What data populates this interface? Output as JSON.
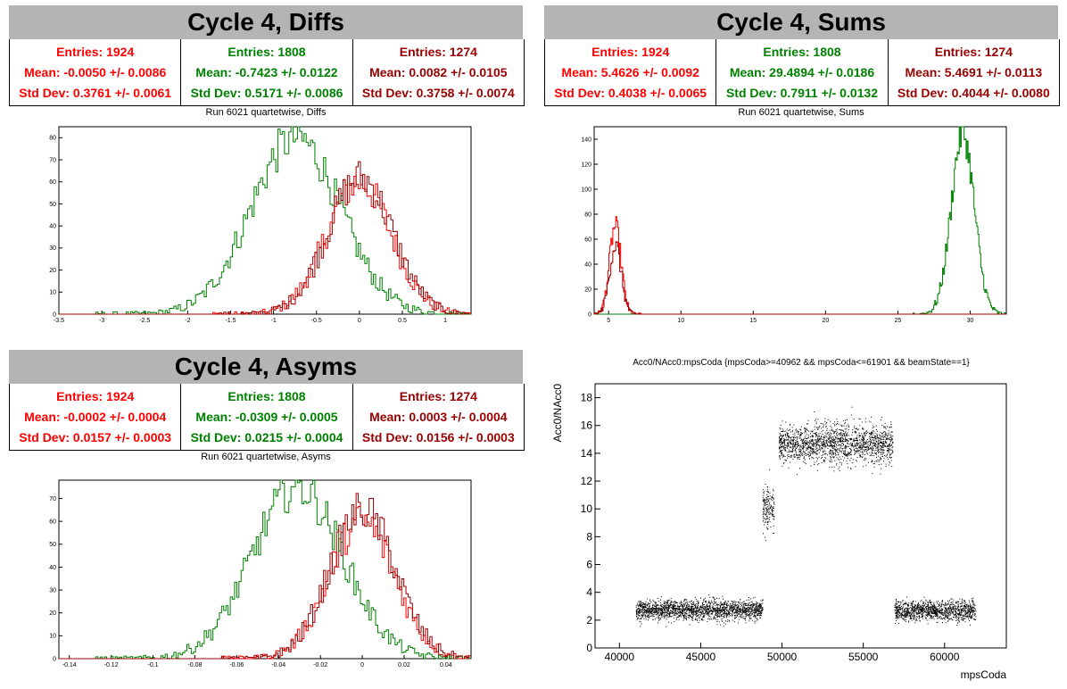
{
  "colors": {
    "red": "#ff0000",
    "green": "#008000",
    "darkred": "#990000",
    "title_bg": "#b4b4b4"
  },
  "panels": {
    "diffs": {
      "title": "Cycle 4, Diffs",
      "subtitle": "Run 6021 quartetwise, Diffs",
      "stats": [
        {
          "entries": "Entries: 1924",
          "mean": "Mean: -0.0050 +/- 0.0086",
          "std": "Std Dev: 0.3761 +/- 0.0061"
        },
        {
          "entries": "Entries: 1808",
          "mean": "Mean: -0.7423 +/- 0.0122",
          "std": "Std Dev: 0.5171 +/- 0.0086"
        },
        {
          "entries": "Entries: 1274",
          "mean": "Mean: 0.0082 +/- 0.0105",
          "std": "Std Dev: 0.3758 +/- 0.0074"
        }
      ]
    },
    "sums": {
      "title": "Cycle 4, Sums",
      "subtitle": "Run 6021 quartetwise, Sums",
      "stats": [
        {
          "entries": "Entries: 1924",
          "mean": "Mean: 5.4626 +/- 0.0092",
          "std": "Std Dev: 0.4038 +/- 0.0065"
        },
        {
          "entries": "Entries: 1808",
          "mean": "Mean: 29.4894 +/- 0.0186",
          "std": "Std Dev: 0.7911 +/- 0.0132"
        },
        {
          "entries": "Entries: 1274",
          "mean": "Mean: 5.4691 +/- 0.0113",
          "std": "Std Dev: 0.4044 +/- 0.0080"
        }
      ]
    },
    "asyms": {
      "title": "Cycle 4, Asyms",
      "subtitle": "Run 6021 quartetwise, Asyms",
      "stats": [
        {
          "entries": "Entries: 1924",
          "mean": "Mean: -0.0002 +/- 0.0004",
          "std": "Std Dev: 0.0157 +/- 0.0003"
        },
        {
          "entries": "Entries: 1808",
          "mean": "Mean: -0.0309 +/- 0.0005",
          "std": "Std Dev: 0.0215 +/- 0.0004"
        },
        {
          "entries": "Entries: 1274",
          "mean": "Mean: 0.0003 +/- 0.0004",
          "std": "Std Dev: 0.0156 +/- 0.0003"
        }
      ]
    },
    "scatter": {
      "title": "Acc0/NAcc0:mpsCoda {mpsCoda>=40962 && mpsCoda<=61901 && beamState==1}"
    }
  },
  "chart_data": [
    {
      "type": "histogram",
      "xlim": [
        -3.5,
        1.3
      ],
      "ylim": [
        0,
        85
      ],
      "xticks": [
        -3.5,
        -3,
        -2.5,
        -2,
        -1.5,
        -1,
        -0.5,
        0,
        0.5,
        1
      ],
      "xtick_labels": [
        "-3.5",
        "-3",
        "-2.5",
        "-2",
        "-1.5",
        "-1",
        "-0.5",
        "0",
        "0.5",
        "1"
      ],
      "yticks": [
        0,
        10,
        20,
        30,
        40,
        50,
        60,
        70,
        80
      ],
      "ytick_labels": [
        "0",
        "10",
        "20",
        "30",
        "40",
        "50",
        "60",
        "70",
        "80"
      ],
      "series": [
        {
          "color": "red",
          "mean": -0.005,
          "std": 0.3761,
          "peak": 60
        },
        {
          "color": "green",
          "mean": -0.7423,
          "std": 0.5171,
          "peak": 80
        },
        {
          "color": "darkred",
          "mean": 0.0082,
          "std": 0.3758,
          "peak": 62
        }
      ]
    },
    {
      "type": "histogram",
      "xlim": [
        4,
        32.5
      ],
      "ylim": [
        0,
        150
      ],
      "xticks": [
        5,
        10,
        15,
        20,
        25,
        30
      ],
      "xtick_labels": [
        "5",
        "10",
        "15",
        "20",
        "25",
        "30"
      ],
      "yticks": [
        0,
        20,
        40,
        60,
        80,
        100,
        120,
        140
      ],
      "ytick_labels": [
        "0",
        "20",
        "40",
        "60",
        "80",
        "100",
        "120",
        "140"
      ],
      "series": [
        {
          "color": "red",
          "mean": 5.4626,
          "std": 0.4038,
          "peak": 70
        },
        {
          "color": "green",
          "mean": 29.4894,
          "std": 0.7911,
          "peak": 145
        },
        {
          "color": "darkred",
          "mean": 5.4691,
          "std": 0.4044,
          "peak": 55
        }
      ]
    },
    {
      "type": "histogram",
      "xlim": [
        -0.145,
        0.052
      ],
      "ylim": [
        0,
        78
      ],
      "xticks": [
        -0.14,
        -0.12,
        -0.1,
        -0.08,
        -0.06,
        -0.04,
        -0.02,
        0,
        0.02,
        0.04
      ],
      "xtick_labels": [
        "-0.14",
        "-0.12",
        "-0.1",
        "-0.08",
        "-0.06",
        "-0.04",
        "-0.02",
        "0",
        "0.02",
        "0.04"
      ],
      "yticks": [
        0,
        10,
        20,
        30,
        40,
        50,
        60,
        70
      ],
      "ytick_labels": [
        "0",
        "10",
        "20",
        "30",
        "40",
        "50",
        "60",
        "70"
      ],
      "series": [
        {
          "color": "red",
          "mean": -0.0002,
          "std": 0.0157,
          "peak": 60
        },
        {
          "color": "green",
          "mean": -0.0309,
          "std": 0.0215,
          "peak": 75
        },
        {
          "color": "darkred",
          "mean": 0.0003,
          "std": 0.0156,
          "peak": 65
        }
      ]
    },
    {
      "type": "scatter",
      "title": "Acc0/NAcc0:mpsCoda {mpsCoda>=40962 && mpsCoda<=61901 && beamState==1}",
      "xlabel": "mpsCoda",
      "ylabel": "Acc0/NAcc0",
      "xlim": [
        38500,
        63800
      ],
      "ylim": [
        0,
        19
      ],
      "xticks": [
        40000,
        45000,
        50000,
        55000,
        60000
      ],
      "xtick_labels": [
        "40000",
        "45000",
        "50000",
        "55000",
        "60000"
      ],
      "yticks": [
        0,
        2,
        4,
        6,
        8,
        10,
        12,
        14,
        16,
        18
      ],
      "ytick_labels": [
        "0",
        "2",
        "4",
        "6",
        "8",
        "10",
        "12",
        "14",
        "16",
        "18"
      ],
      "clusters": [
        {
          "x": [
            41000,
            48800
          ],
          "y_center": 2.75,
          "y_spread": 0.35
        },
        {
          "x": [
            48800,
            49500
          ],
          "y_center": 10,
          "y_spread": 0.8
        },
        {
          "x": [
            49800,
            56800
          ],
          "y_center": 14.7,
          "y_spread": 0.7
        },
        {
          "x": [
            56900,
            61900
          ],
          "y_center": 2.7,
          "y_spread": 0.35
        }
      ]
    }
  ]
}
